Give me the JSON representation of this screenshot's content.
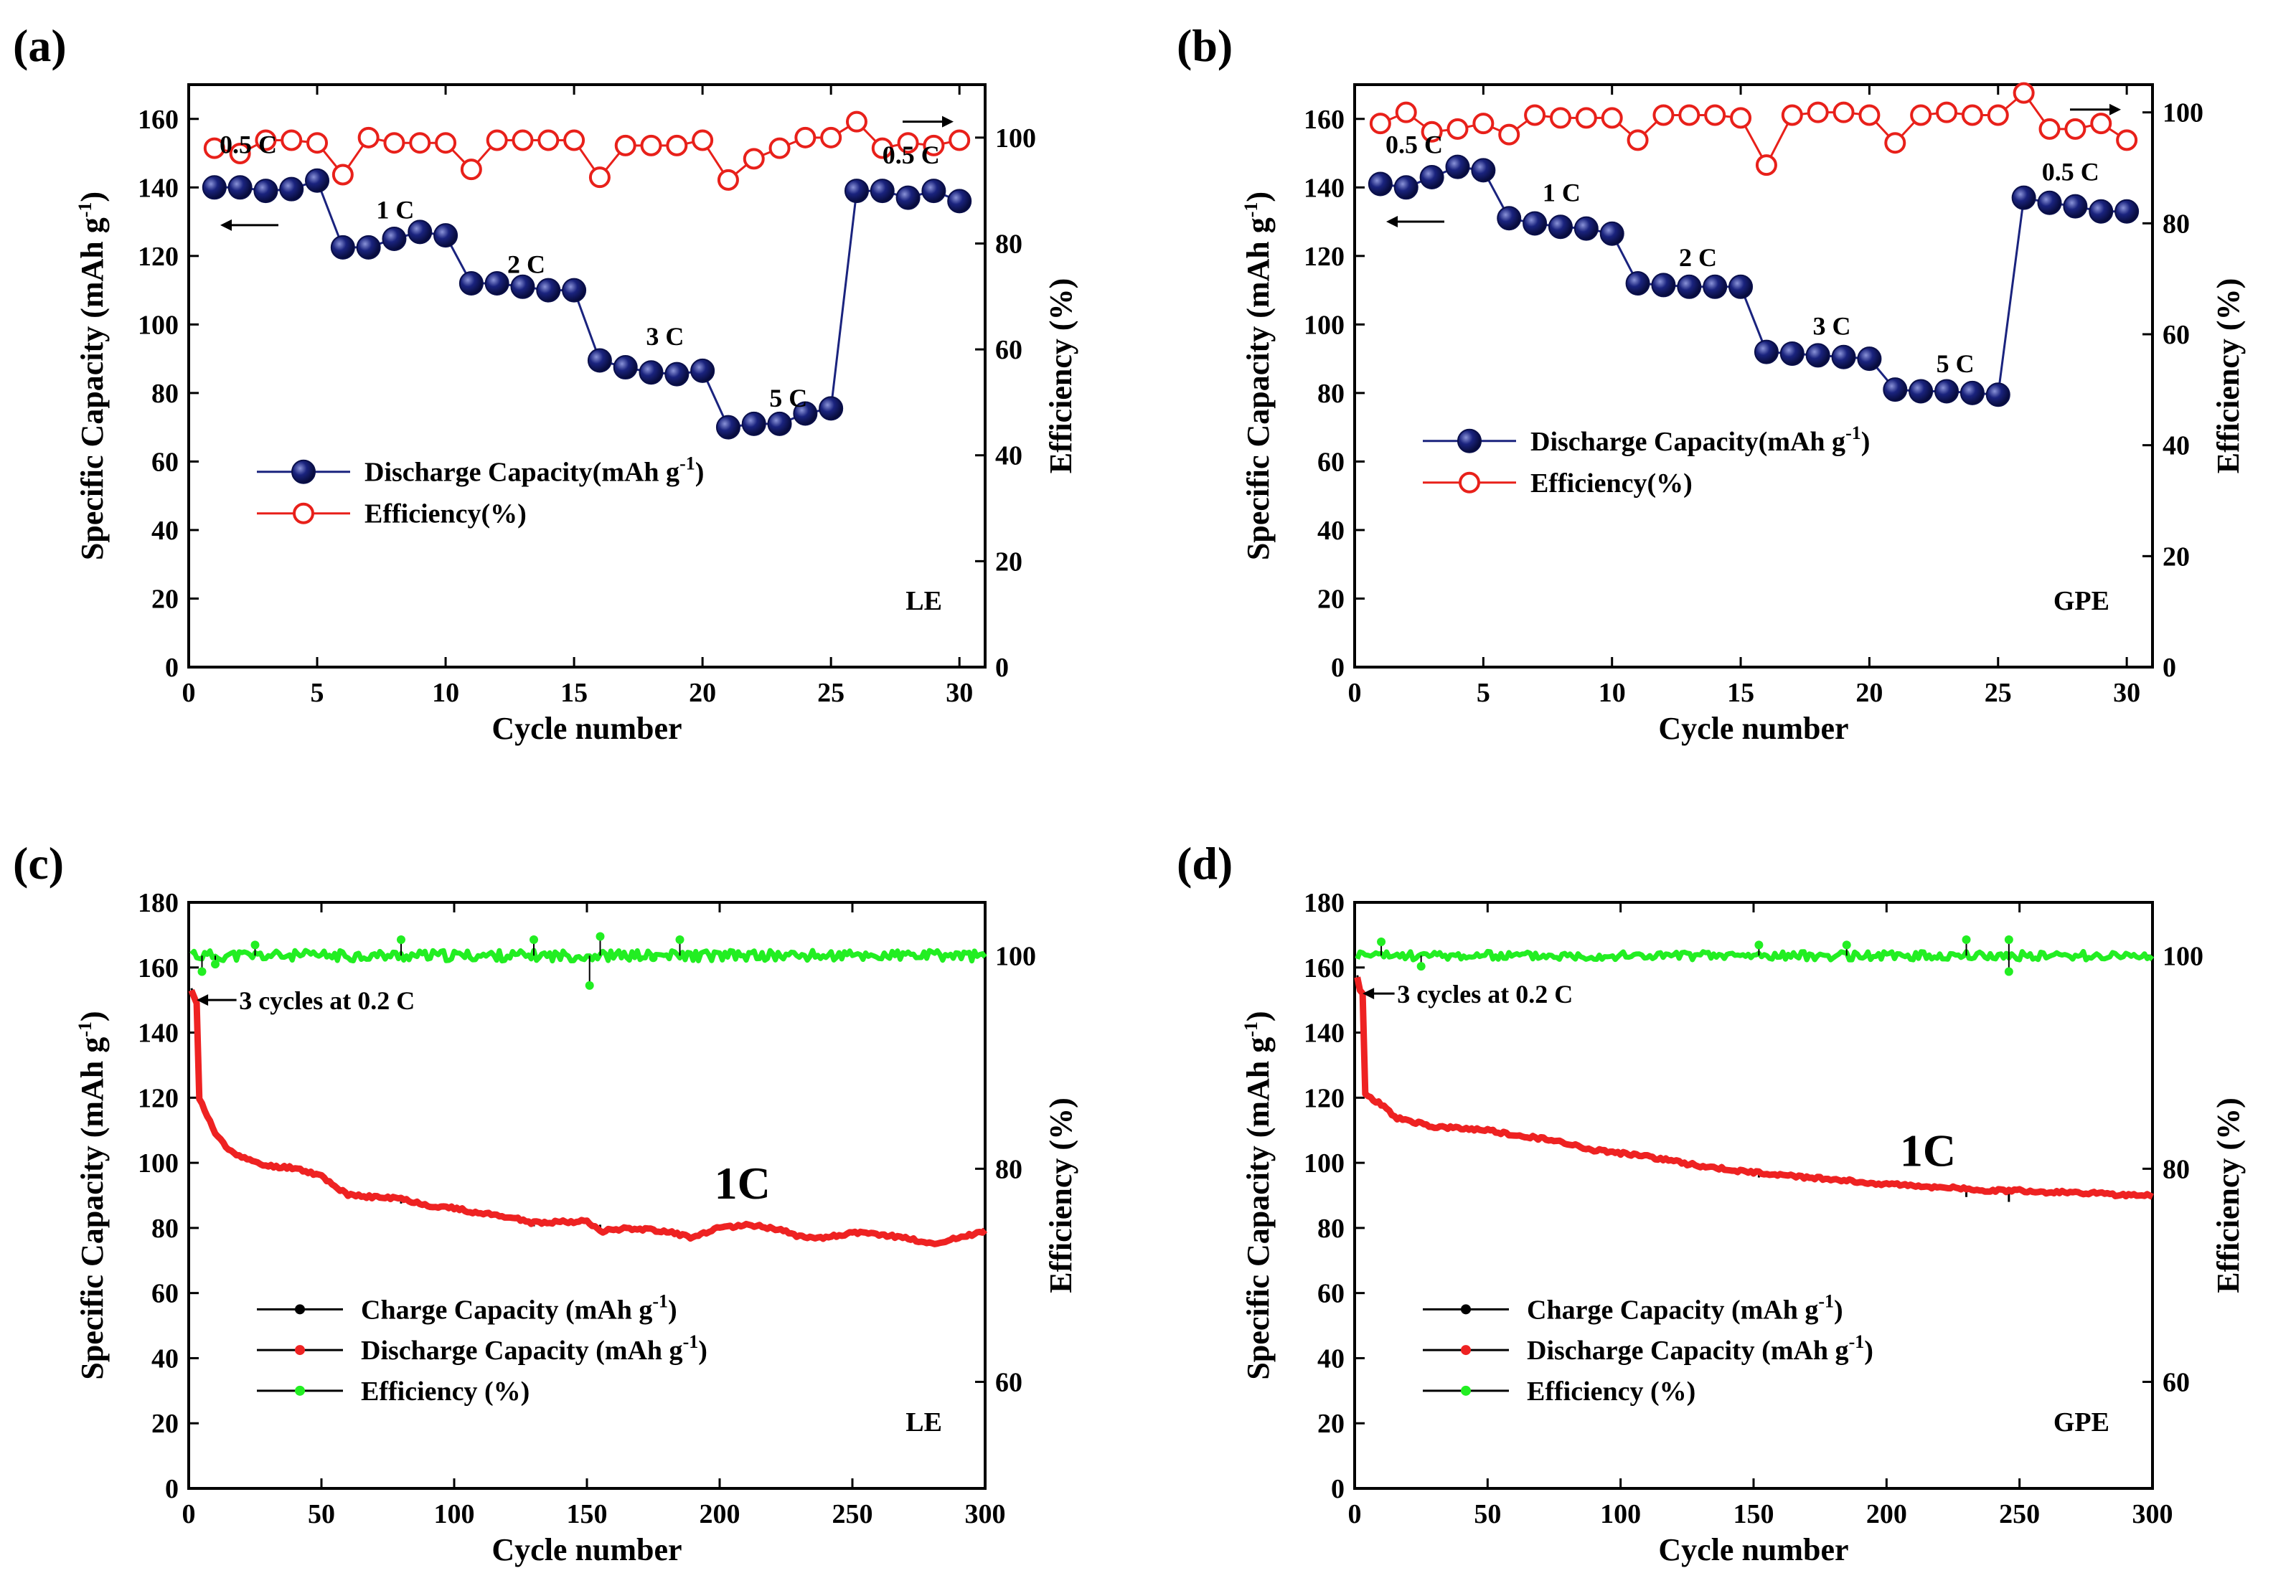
{
  "figure": {
    "panels": [
      {
        "id": "a",
        "panel_label": "(a)",
        "box": "LE",
        "xlabel": "Cycle number",
        "ylabel_left": "Specific Capacity (mAh g",
        "ylabel_left_sup": "-1",
        "ylabel_left_end": ")",
        "ylabel_right": "Efficiency (%)",
        "annotations": [
          "0.5 C",
          "1 C",
          "2 C",
          "3 C",
          "5 C",
          "0.5 C"
        ],
        "legend": [
          {
            "label": "Discharge Capacity(mAh g",
            "sup": "-1",
            "end": ")"
          },
          {
            "label": "Efficiency(%)",
            "sup": "",
            "end": ""
          }
        ]
      },
      {
        "id": "b",
        "panel_label": "(b)",
        "box": "GPE",
        "xlabel": "Cycle number",
        "ylabel_left": "Specific Capacity (mAh g",
        "ylabel_left_sup": "-1",
        "ylabel_left_end": ")",
        "ylabel_right": "Efficiency (%)",
        "annotations": [
          "0.5 C",
          "1 C",
          "2 C",
          "3 C",
          "5 C",
          "0.5 C"
        ],
        "legend": [
          {
            "label": "Discharge Capacity(mAh g",
            "sup": "-1",
            "end": ")"
          },
          {
            "label": "Efficiency(%)",
            "sup": "",
            "end": ""
          }
        ]
      },
      {
        "id": "c",
        "panel_label": "(c)",
        "box": "LE",
        "xlabel": "Cycle number",
        "ylabel_left": "Specific Capacity (mAh g",
        "ylabel_left_sup": "-1",
        "ylabel_left_end": ")",
        "ylabel_right": "Efficiency (%)",
        "annotations": [
          "3 cycles at 0.2 C",
          "1C"
        ],
        "legend": [
          {
            "label": "Charge Capacity (mAh g",
            "sup": "-1",
            "end": ")"
          },
          {
            "label": "Discharge Capacity (mAh g",
            "sup": "-1",
            "end": ")"
          },
          {
            "label": "Efficiency (%)",
            "sup": "",
            "end": ""
          }
        ]
      },
      {
        "id": "d",
        "panel_label": "(d)",
        "box": "GPE",
        "xlabel": "Cycle number",
        "ylabel_left": "Specific Capacity (mAh g",
        "ylabel_left_sup": "-1",
        "ylabel_left_end": ")",
        "ylabel_right": "Efficiency (%)",
        "annotations": [
          "3 cycles at 0.2 C",
          "1C"
        ],
        "legend": [
          {
            "label": "Charge Capacity (mAh g",
            "sup": "-1",
            "end": ")"
          },
          {
            "label": "Discharge Capacity (mAh g",
            "sup": "-1",
            "end": ")"
          },
          {
            "label": "Efficiency (%)",
            "sup": "",
            "end": ""
          }
        ]
      }
    ]
  },
  "chart_data": [
    {
      "id": "a",
      "type": "scatter",
      "x": [
        1,
        2,
        3,
        4,
        5,
        6,
        7,
        8,
        9,
        10,
        11,
        12,
        13,
        14,
        15,
        16,
        17,
        18,
        19,
        20,
        21,
        22,
        23,
        24,
        25,
        26,
        27,
        28,
        29,
        30
      ],
      "series": [
        {
          "name": "Discharge Capacity(mAh g-1)",
          "axis": "left",
          "color": "#1a237e",
          "values": [
            140,
            140,
            139,
            139.5,
            142,
            122.5,
            122.5,
            125,
            127,
            126,
            112,
            112,
            111,
            110,
            110,
            89.5,
            87.5,
            86,
            85.5,
            86.5,
            70,
            71,
            71,
            74,
            75.5,
            139,
            139,
            137,
            139,
            136
          ]
        },
        {
          "name": "Efficiency(%)",
          "axis": "right",
          "color": "#e8201a",
          "values": [
            98,
            97,
            99.5,
            99.5,
            99,
            93,
            100,
            99,
            99,
            99,
            94,
            99.5,
            99.5,
            99.5,
            99.5,
            92.5,
            98.5,
            98.5,
            98.5,
            99.5,
            92,
            96,
            98,
            100,
            100,
            103,
            98,
            99,
            98.5,
            99.5
          ]
        }
      ],
      "xlim": [
        0,
        31
      ],
      "xticks": [
        0,
        5,
        10,
        15,
        20,
        25,
        30
      ],
      "ylim_left": [
        0,
        170
      ],
      "yticks_left": [
        0,
        20,
        40,
        60,
        80,
        100,
        120,
        140,
        160
      ],
      "ylim_right": [
        0,
        110
      ],
      "yticks_right": [
        0,
        20,
        40,
        60,
        80,
        100
      ],
      "legend_position": "center-left"
    },
    {
      "id": "b",
      "type": "scatter",
      "x": [
        1,
        2,
        3,
        4,
        5,
        6,
        7,
        8,
        9,
        10,
        11,
        12,
        13,
        14,
        15,
        16,
        17,
        18,
        19,
        20,
        21,
        22,
        23,
        24,
        25,
        26,
        27,
        28,
        29,
        30
      ],
      "series": [
        {
          "name": "Discharge Capacity(mAh g-1)",
          "axis": "left",
          "color": "#1a237e",
          "values": [
            141,
            140,
            143,
            146,
            145,
            131,
            129.5,
            128.5,
            128,
            126.5,
            112,
            111.5,
            111,
            111,
            111,
            92,
            91.5,
            91,
            90.5,
            90,
            81,
            80.5,
            80.5,
            80,
            79.5,
            137,
            135.5,
            134.5,
            133,
            133
          ]
        },
        {
          "name": "Efficiency(%)",
          "axis": "right",
          "color": "#e8201a",
          "values": [
            98,
            100,
            96.5,
            97,
            98,
            96,
            99.5,
            99,
            99,
            99,
            95,
            99.5,
            99.5,
            99.5,
            99,
            90.5,
            99.5,
            100,
            100,
            99.5,
            94.5,
            99.5,
            100,
            99.5,
            99.5,
            103.5,
            97,
            97,
            98,
            95
          ]
        }
      ],
      "xlim": [
        0,
        31
      ],
      "xticks": [
        0,
        5,
        10,
        15,
        20,
        25,
        30
      ],
      "ylim_left": [
        0,
        170
      ],
      "yticks_left": [
        0,
        20,
        40,
        60,
        80,
        100,
        120,
        140,
        160
      ],
      "ylim_right": [
        0,
        105
      ],
      "yticks_right": [
        0,
        20,
        40,
        60,
        80,
        100
      ],
      "legend_position": "center-left"
    },
    {
      "id": "c",
      "type": "line",
      "discharge_points": [
        [
          1,
          153
        ],
        [
          2,
          151
        ],
        [
          3,
          149
        ],
        [
          4,
          120
        ],
        [
          5,
          118
        ],
        [
          10,
          109
        ],
        [
          15,
          104
        ],
        [
          20,
          102
        ],
        [
          25,
          100
        ],
        [
          30,
          99
        ],
        [
          40,
          98.5
        ],
        [
          50,
          96
        ],
        [
          60,
          90
        ],
        [
          70,
          89.5
        ],
        [
          80,
          89
        ],
        [
          90,
          87
        ],
        [
          100,
          86
        ],
        [
          110,
          84.5
        ],
        [
          120,
          83.5
        ],
        [
          130,
          81.5
        ],
        [
          140,
          82
        ],
        [
          150,
          82
        ],
        [
          155,
          79
        ],
        [
          165,
          80
        ],
        [
          180,
          79
        ],
        [
          190,
          77
        ],
        [
          200,
          80
        ],
        [
          210,
          81
        ],
        [
          220,
          80
        ],
        [
          230,
          77.5
        ],
        [
          240,
          77
        ],
        [
          250,
          78.5
        ],
        [
          260,
          78
        ],
        [
          270,
          77
        ],
        [
          280,
          75
        ],
        [
          290,
          77
        ],
        [
          300,
          79
        ]
      ],
      "efficiency_mean": 100,
      "efficiency_noise": 0.5,
      "efficiency_outliers": [
        [
          5,
          98.5
        ],
        [
          10,
          99.2
        ],
        [
          25,
          101
        ],
        [
          80,
          101.5
        ],
        [
          130,
          101.5
        ],
        [
          151,
          97.2
        ],
        [
          155,
          101.8
        ],
        [
          175,
          99.8
        ],
        [
          185,
          101.5
        ]
      ],
      "charge_dips": [
        [
          80,
          87.5
        ],
        [
          130,
          80.5
        ],
        [
          155,
          81
        ],
        [
          175,
          80
        ]
      ],
      "series": [
        {
          "name": "Charge Capacity (mAh g-1)",
          "axis": "left",
          "color": "#000000"
        },
        {
          "name": "Discharge Capacity (mAh g-1)",
          "axis": "left",
          "color": "#ee2222"
        },
        {
          "name": "Efficiency (%)",
          "axis": "right",
          "color": "#22ee22"
        }
      ],
      "xlim": [
        0,
        300
      ],
      "xticks": [
        0,
        50,
        100,
        150,
        200,
        250,
        300
      ],
      "ylim_left": [
        0,
        180
      ],
      "yticks_left": [
        0,
        20,
        40,
        60,
        80,
        100,
        120,
        140,
        160,
        180
      ],
      "ylim_right": [
        50,
        105
      ],
      "yticks_right": [
        60,
        80,
        100
      ],
      "legend_position": "lower-left"
    },
    {
      "id": "d",
      "type": "line",
      "discharge_points": [
        [
          1,
          157
        ],
        [
          2,
          153
        ],
        [
          3,
          152
        ],
        [
          4,
          121
        ],
        [
          6,
          120
        ],
        [
          10,
          118
        ],
        [
          15,
          114
        ],
        [
          20,
          113
        ],
        [
          25,
          112
        ],
        [
          30,
          111
        ],
        [
          40,
          110.5
        ],
        [
          50,
          110
        ],
        [
          60,
          108.5
        ],
        [
          70,
          107.5
        ],
        [
          80,
          106
        ],
        [
          90,
          104
        ],
        [
          100,
          103
        ],
        [
          110,
          102
        ],
        [
          120,
          100.5
        ],
        [
          130,
          99
        ],
        [
          140,
          98
        ],
        [
          150,
          97
        ],
        [
          160,
          96.5
        ],
        [
          170,
          95.5
        ],
        [
          180,
          95
        ],
        [
          190,
          94
        ],
        [
          200,
          93.5
        ],
        [
          210,
          93
        ],
        [
          220,
          92.5
        ],
        [
          230,
          92
        ],
        [
          240,
          91.5
        ],
        [
          250,
          91.5
        ],
        [
          260,
          91
        ],
        [
          270,
          91
        ],
        [
          280,
          90.5
        ],
        [
          290,
          90
        ],
        [
          300,
          90
        ]
      ],
      "efficiency_mean": 100,
      "efficiency_noise": 0.4,
      "efficiency_outliers": [
        [
          10,
          101.3
        ],
        [
          25,
          99
        ],
        [
          152,
          101
        ],
        [
          185,
          101
        ],
        [
          230,
          101.5
        ],
        [
          246,
          101.5
        ],
        [
          246,
          98.5
        ]
      ],
      "charge_dips": [
        [
          152,
          95.5
        ],
        [
          230,
          89.5
        ],
        [
          246,
          88
        ]
      ],
      "series": [
        {
          "name": "Charge Capacity (mAh g-1)",
          "axis": "left",
          "color": "#000000"
        },
        {
          "name": "Discharge Capacity (mAh g-1)",
          "axis": "left",
          "color": "#ee2222"
        },
        {
          "name": "Efficiency (%)",
          "axis": "right",
          "color": "#22ee22"
        }
      ],
      "xlim": [
        0,
        300
      ],
      "xticks": [
        0,
        50,
        100,
        150,
        200,
        250,
        300
      ],
      "ylim_left": [
        0,
        180
      ],
      "yticks_left": [
        0,
        20,
        40,
        60,
        80,
        100,
        120,
        140,
        160,
        180
      ],
      "ylim_right": [
        50,
        105
      ],
      "yticks_right": [
        60,
        80,
        100
      ],
      "legend_position": "lower-left"
    }
  ]
}
